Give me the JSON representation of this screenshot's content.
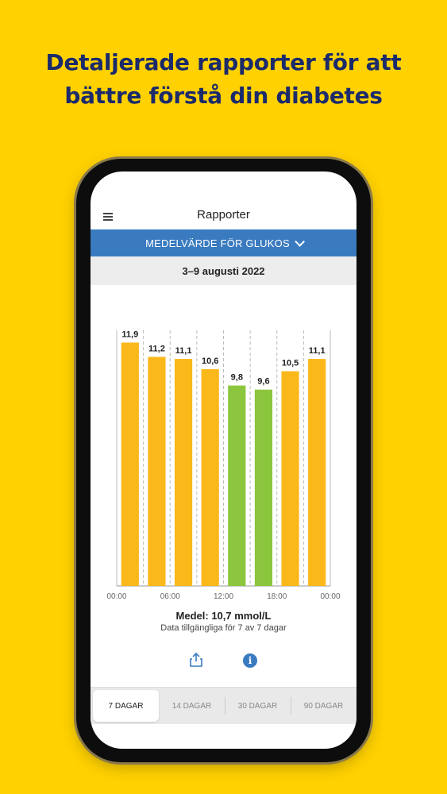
{
  "headline": {
    "line1": "Detaljerade rapporter för att",
    "line2": "bättre förstå din diabetes"
  },
  "app": {
    "title": "Rapporter",
    "menu_icon": "hamburger-menu-icon",
    "metric_selector": "MEDELVÄRDE FÖR GLUKOS",
    "date_range": "3–9 augusti 2022"
  },
  "chart_data": {
    "type": "bar",
    "categories": [
      "00:00-03:00",
      "03:00-06:00",
      "06:00-09:00",
      "09:00-12:00",
      "12:00-15:00",
      "15:00-18:00",
      "18:00-21:00",
      "21:00-24:00"
    ],
    "values": [
      11.9,
      11.2,
      11.1,
      10.6,
      9.8,
      9.6,
      10.5,
      11.1
    ],
    "value_labels": [
      "11,9",
      "11,2",
      "11,1",
      "10,6",
      "9,8",
      "9,6",
      "10,5",
      "11,1"
    ],
    "bar_colors": [
      "#FBB81B",
      "#FBB81B",
      "#FBB81B",
      "#FBB81B",
      "#8CC63F",
      "#8CC63F",
      "#FBB81B",
      "#FBB81B"
    ],
    "x_ticks": [
      "00:00",
      "06:00",
      "12:00",
      "18:00",
      "00:00"
    ],
    "ylim": [
      0,
      12.5
    ],
    "grid": "dashed vertical",
    "xlabel": "",
    "ylabel": ""
  },
  "summary": {
    "average": "Medel: 10,7 mmol/L",
    "availability": "Data tillgängliga för 7 av 7 dagar"
  },
  "actions": {
    "share_icon": "share-icon",
    "info_icon": "info-icon",
    "info_glyph": "i"
  },
  "tabs": [
    {
      "label": "7  DAGAR",
      "active": true
    },
    {
      "label": "14 DAGAR",
      "active": false
    },
    {
      "label": "30 DAGAR",
      "active": false
    },
    {
      "label": "90 DAGAR",
      "active": false
    }
  ],
  "colors": {
    "background": "#FFD100",
    "headline": "#1B2A6B",
    "accent": "#3A7BC0",
    "bar_high": "#FBB81B",
    "bar_target": "#8CC63F"
  }
}
